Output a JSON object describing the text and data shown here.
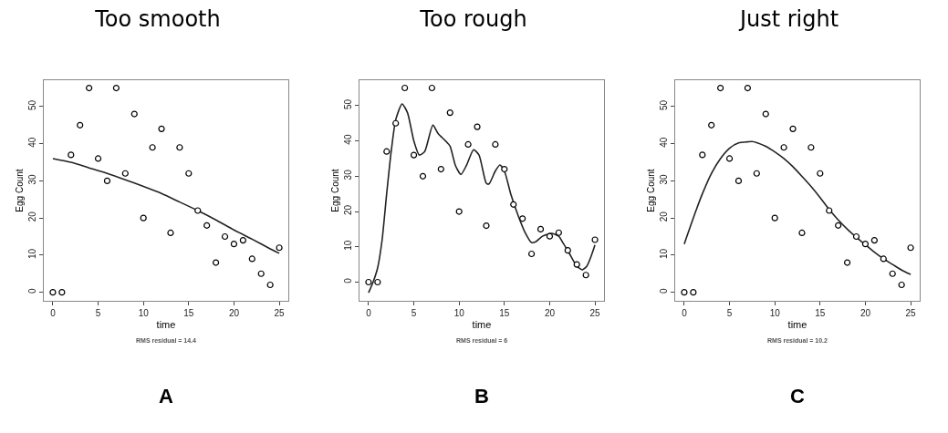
{
  "chart_data": [
    {
      "type": "scatter",
      "title": "Too smooth",
      "xlabel": "time",
      "ylabel": "Egg Count",
      "annotations": [
        "RMS residual = 14.4",
        "A"
      ],
      "x": [
        0,
        1,
        2,
        3,
        4,
        5,
        6,
        7,
        8,
        9,
        10,
        11,
        12,
        13,
        14,
        15,
        16,
        17,
        18,
        19,
        20,
        21,
        22,
        23,
        24,
        25
      ],
      "xlim": [
        -1,
        26
      ],
      "ylim": [
        -2.3,
        57.1
      ],
      "xticks": [
        0,
        5,
        10,
        15,
        20,
        25
      ],
      "yticks": [
        0,
        10,
        20,
        30,
        40,
        50
      ],
      "grid": false,
      "series": [
        {
          "marker": "circle",
          "color": "#000000",
          "values": [
            0,
            0,
            37,
            45,
            55,
            36,
            30,
            55,
            32,
            48,
            20,
            39,
            44,
            16,
            39,
            32,
            22,
            18,
            8,
            15,
            13,
            14,
            9,
            5,
            2,
            12
          ]
        },
        {
          "type": "line",
          "marker": "none",
          "line_style": "solid",
          "color": "#222222",
          "x": [
            0,
            2,
            4,
            6,
            8,
            10,
            12,
            14,
            16,
            18,
            20,
            22,
            24,
            25
          ],
          "values": [
            36,
            35,
            33.5,
            32,
            30.3,
            28.5,
            26.6,
            24.3,
            22,
            19.5,
            16.8,
            14.3,
            11.7,
            10.5
          ]
        }
      ]
    },
    {
      "type": "scatter",
      "title": "Too rough",
      "xlabel": "time",
      "ylabel": "Egg Count",
      "annotations": [
        "RMS residual = 6",
        "B"
      ],
      "x": [
        0,
        1,
        2,
        3,
        4,
        5,
        6,
        7,
        8,
        9,
        10,
        11,
        12,
        13,
        14,
        15,
        16,
        17,
        18,
        19,
        20,
        21,
        22,
        23,
        24,
        25
      ],
      "xlim": [
        -1,
        26
      ],
      "ylim": [
        -5.3,
        57.2
      ],
      "xticks": [
        0,
        5,
        10,
        15,
        20,
        25
      ],
      "yticks": [
        0,
        10,
        20,
        30,
        40,
        50
      ],
      "grid": false,
      "series": [
        {
          "marker": "circle",
          "color": "#000000",
          "values": [
            0,
            0,
            37,
            45,
            55,
            36,
            30,
            55,
            32,
            48,
            20,
            39,
            44,
            16,
            39,
            32,
            22,
            18,
            8,
            15,
            13,
            14,
            9,
            5,
            2,
            12
          ]
        },
        {
          "type": "line",
          "marker": "none",
          "line_style": "solid",
          "color": "#222222",
          "x": [
            0,
            0.5,
            1,
            1.5,
            2,
            2.5,
            3,
            3.7,
            4.3,
            5,
            5.6,
            6.2,
            7.1,
            7.7,
            8.5,
            9,
            9.6,
            10.2,
            10.8,
            11.6,
            12.2,
            13,
            13.3,
            14,
            14.5,
            15,
            15.7,
            16.5,
            17.3,
            18,
            18.5,
            19.2,
            20.2,
            21,
            21.5,
            22.2,
            23,
            23.6,
            24.1,
            24.6,
            25
          ],
          "values": [
            -3,
            0,
            4,
            12,
            25,
            37,
            46,
            50.5,
            48,
            40,
            36,
            37,
            44.5,
            42,
            40,
            38.5,
            33,
            30.5,
            33,
            37.5,
            36,
            28,
            27.8,
            31.5,
            33.2,
            31.5,
            25,
            19,
            14,
            11.2,
            11.5,
            13,
            13.8,
            13,
            11,
            8,
            4.5,
            3.5,
            4.5,
            7.5,
            10.5
          ]
        }
      ]
    },
    {
      "type": "scatter",
      "title": "Just right",
      "xlabel": "time",
      "ylabel": "Egg Count",
      "annotations": [
        "RMS residual = 10.2",
        "C"
      ],
      "x": [
        0,
        1,
        2,
        3,
        4,
        5,
        6,
        7,
        8,
        9,
        10,
        11,
        12,
        13,
        14,
        15,
        16,
        17,
        18,
        19,
        20,
        21,
        22,
        23,
        24,
        25
      ],
      "xlim": [
        -1,
        26
      ],
      "ylim": [
        -2.3,
        57.1
      ],
      "xticks": [
        0,
        5,
        10,
        15,
        20,
        25
      ],
      "yticks": [
        0,
        10,
        20,
        30,
        40,
        50
      ],
      "grid": false,
      "series": [
        {
          "marker": "circle",
          "color": "#000000",
          "values": [
            0,
            0,
            37,
            45,
            55,
            36,
            30,
            55,
            32,
            48,
            20,
            39,
            44,
            16,
            39,
            32,
            22,
            18,
            8,
            15,
            13,
            14,
            9,
            5,
            2,
            12
          ]
        },
        {
          "type": "line",
          "marker": "none",
          "line_style": "solid",
          "color": "#222222",
          "x": [
            0,
            1,
            2,
            3,
            4,
            5,
            6,
            7,
            7.5,
            8,
            9,
            10,
            11,
            12,
            13,
            14,
            15,
            16,
            17,
            18,
            19,
            20,
            21,
            22,
            23,
            24,
            25
          ],
          "values": [
            13,
            20,
            26.5,
            32,
            36,
            38.8,
            40.2,
            40.5,
            40.6,
            40.3,
            39.3,
            37.8,
            36,
            33.8,
            31.2,
            28.5,
            25.5,
            22.3,
            19.5,
            17,
            14.8,
            12.8,
            10.8,
            9,
            7.5,
            6,
            4.8
          ]
        }
      ]
    }
  ]
}
